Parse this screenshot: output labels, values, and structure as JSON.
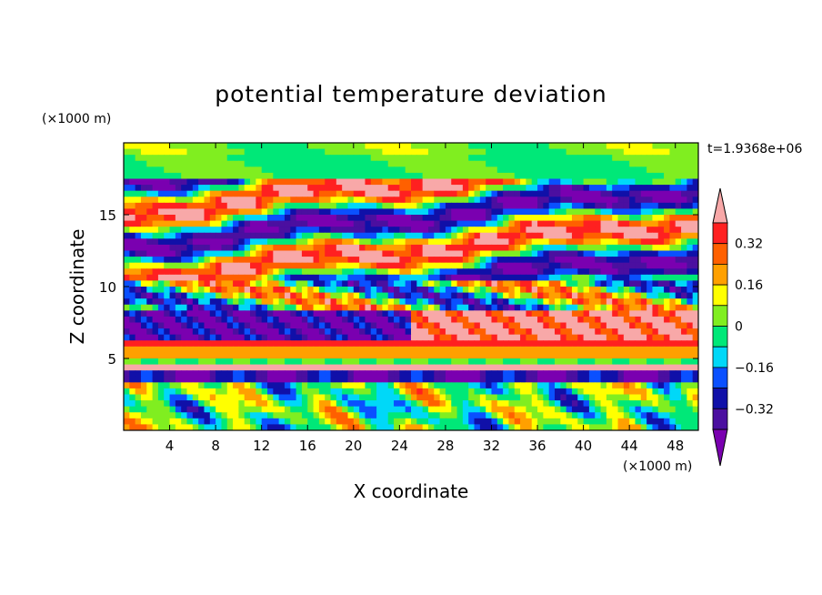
{
  "chart_data": {
    "type": "heatmap",
    "title": "potential temperature deviation",
    "xlabel": "X coordinate",
    "ylabel": "Z coordinate",
    "x_unit_label": "(×1000 m)",
    "y_unit_label": "(×1000 m)",
    "time_label": "t=1.9368e+06",
    "xlim": [
      0,
      50
    ],
    "ylim": [
      0,
      20
    ],
    "x_ticks": [
      4,
      8,
      12,
      16,
      20,
      24,
      28,
      32,
      36,
      40,
      44,
      48
    ],
    "y_ticks": [
      5,
      10,
      15
    ],
    "colorbar": {
      "levels": [
        -0.4,
        -0.32,
        -0.24,
        -0.16,
        -0.08,
        0,
        0.08,
        0.16,
        0.24,
        0.32,
        0.4
      ],
      "colors": [
        "#7a00b0",
        "#4b0fa0",
        "#1010a8",
        "#0a50ff",
        "#00d8f8",
        "#00e878",
        "#80ee20",
        "#ffff00",
        "#ffa000",
        "#ff6000",
        "#ff2020",
        "#f8a8a8"
      ],
      "labels": [
        "0.32",
        "0.16",
        "0",
        "-0.16",
        "-0.32"
      ]
    }
  }
}
